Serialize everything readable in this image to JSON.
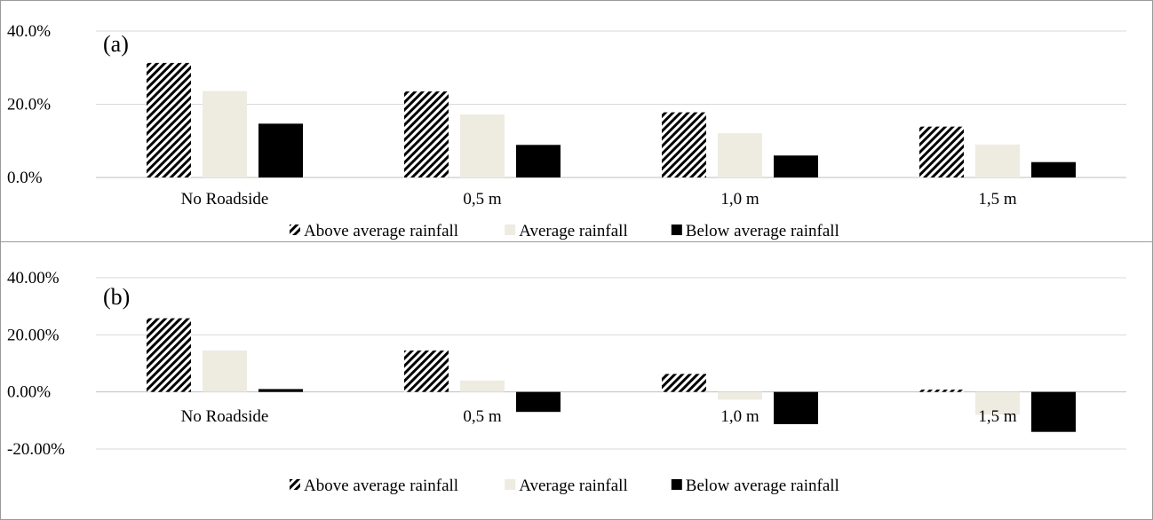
{
  "chart_data": [
    {
      "type": "bar",
      "panel_label": "(a)",
      "categories": [
        "No Roadside",
        "0,5 m",
        "1,0 m",
        "1,5 m"
      ],
      "series": [
        {
          "name": "Above average rainfall",
          "values": [
            0.313,
            0.235,
            0.178,
            0.139
          ]
        },
        {
          "name": "Average rainfall",
          "values": [
            0.236,
            0.172,
            0.121,
            0.09
          ]
        },
        {
          "name": "Below average rainfall",
          "values": [
            0.147,
            0.089,
            0.06,
            0.042
          ]
        }
      ],
      "yticks": [
        0,
        0.2,
        0.4
      ],
      "ytick_labels": [
        "0.0%",
        "20.0%",
        "40.0%"
      ],
      "ylim": [
        0,
        0.4
      ],
      "grid": true,
      "legend_position": "bottom"
    },
    {
      "type": "bar",
      "panel_label": "(b)",
      "categories": [
        "No Roadside",
        "0,5 m",
        "1,0 m",
        "1,5 m"
      ],
      "series": [
        {
          "name": "Above average rainfall",
          "values": [
            0.258,
            0.145,
            0.063,
            0.008
          ]
        },
        {
          "name": "Average rainfall",
          "values": [
            0.145,
            0.04,
            -0.027,
            -0.08
          ]
        },
        {
          "name": "Below average rainfall",
          "values": [
            0.01,
            -0.07,
            -0.113,
            -0.14
          ]
        }
      ],
      "yticks": [
        -0.2,
        0,
        0.2,
        0.4
      ],
      "ytick_labels": [
        "-20.00%",
        "0.00%",
        "20.00%",
        "40.00%"
      ],
      "ylim": [
        -0.2,
        0.4
      ],
      "grid": true,
      "legend_position": "bottom"
    }
  ],
  "colors": {
    "above": "hatched black/white diagonal",
    "average": "#eeebe1",
    "below": "#000000"
  }
}
